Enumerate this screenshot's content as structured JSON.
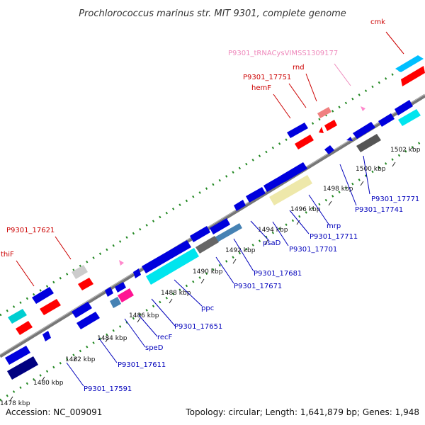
{
  "title": "Prochlorococcus marinus str. MIT 9301, complete genome",
  "footer": {
    "accession": "Accession: NC_009091",
    "summary": "Topology: circular; Length: 1,641,879 bp; Genes: 1,948"
  },
  "colors": {
    "backbone": "#888888",
    "forward_track_dots": "#228822",
    "cds": "#0000dd",
    "trna": "#ff66aa",
    "rrna_like": "#ff0000",
    "cyan_gene": "#00e5ee",
    "khaki_gene": "#eee8aa",
    "gray_gene": "#666666",
    "navy_gene": "#000080",
    "steelblue_gene": "#4682b4",
    "magenta_gene": "#ff1493",
    "lightgray_gene": "#cccccc",
    "salmon_gene": "#f08080",
    "deepskyblue_gene": "#00bfff"
  },
  "ticks": [
    {
      "label": "1478 kbp"
    },
    {
      "label": "1480 kbp"
    },
    {
      "label": "1482 kbp"
    },
    {
      "label": "1484 kbp"
    },
    {
      "label": "1486 kbp"
    },
    {
      "label": "1488 kbp"
    },
    {
      "label": "1490 kbp"
    },
    {
      "label": "1492 kbp"
    },
    {
      "label": "1494 kbp"
    },
    {
      "label": "1496 kbp"
    },
    {
      "label": "1498 kbp"
    },
    {
      "label": "1500 kbp"
    },
    {
      "label": "1502 kbp"
    }
  ],
  "gene_labels": {
    "top": [
      {
        "text": "cmk"
      },
      {
        "text": "P9301_tRNACysVIMSS1309177"
      },
      {
        "text": "rnd"
      },
      {
        "text": "P9301_17751"
      },
      {
        "text": "hemF"
      },
      {
        "text": "P9301_17621"
      },
      {
        "text": "thiF"
      }
    ],
    "bottom": [
      {
        "text": "P9301_17771"
      },
      {
        "text": "P9301_17741"
      },
      {
        "text": "mrp"
      },
      {
        "text": "P9301_17711"
      },
      {
        "text": "P9301_17701"
      },
      {
        "text": "psaD"
      },
      {
        "text": "P9301_17681"
      },
      {
        "text": "P9301_17671"
      },
      {
        "text": "ppc"
      },
      {
        "text": "P9301_17651"
      },
      {
        "text": "recF"
      },
      {
        "text": "speD"
      },
      {
        "text": "P9301_17611"
      },
      {
        "text": "P9301_17591"
      }
    ]
  }
}
